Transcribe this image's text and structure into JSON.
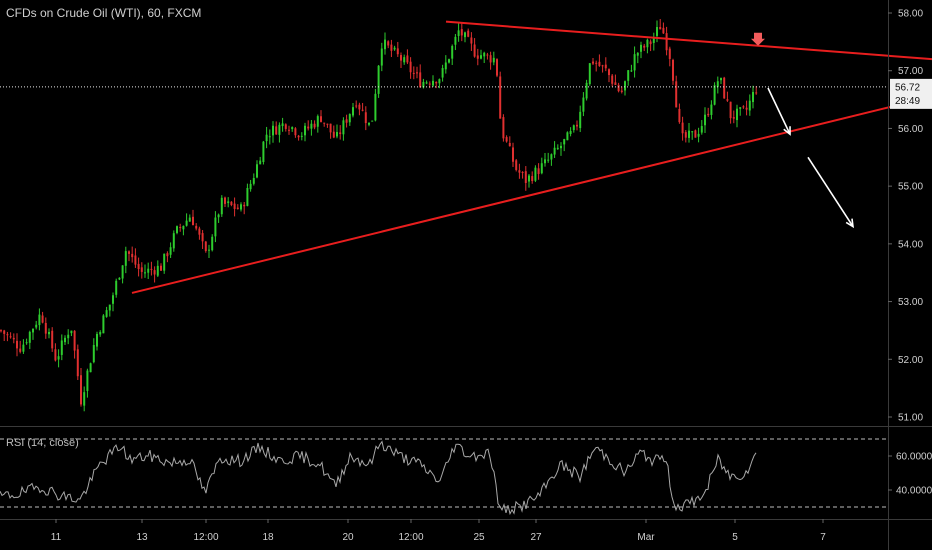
{
  "header": {
    "title": "CFDs on Crude Oil (WTI), 60, FXCM"
  },
  "rsi": {
    "title": "RSI (14, close)",
    "upper": 70,
    "lower": 30
  },
  "colors": {
    "up": "#2ecc2e",
    "down": "#e03030",
    "trend": "#e81e1e",
    "arrow": "#ffffff",
    "rsi_line": "#a8a8a8",
    "marker": "#f25c5c"
  },
  "price_scale": {
    "min": 50.8,
    "max": 58.2,
    "ticks": [
      "58.00",
      "57.00",
      "56.00",
      "55.00",
      "54.00",
      "53.00",
      "52.00",
      "51.00"
    ]
  },
  "rsi_scale": {
    "ticks": [
      "60.0000",
      "40.0000"
    ]
  },
  "current": {
    "price": "56.72",
    "countdown": "28:49"
  },
  "x_axis": {
    "labels": [
      "11",
      "13",
      "12:00",
      "18",
      "20",
      "12:00",
      "25",
      "27",
      "Mar",
      "5",
      "7"
    ]
  },
  "chart_data": {
    "type": "candlestick",
    "symbol": "CFDs on Crude Oil (WTI)",
    "timeframe": "60",
    "source": "FXCM",
    "price_path": [
      [
        0,
        52.5
      ],
      [
        20,
        52.2
      ],
      [
        40,
        52.8
      ],
      [
        55,
        52.0
      ],
      [
        70,
        52.6
      ],
      [
        80,
        51.3
      ],
      [
        95,
        52.4
      ],
      [
        110,
        53.0
      ],
      [
        125,
        53.9
      ],
      [
        140,
        53.5
      ],
      [
        160,
        53.6
      ],
      [
        175,
        54.2
      ],
      [
        190,
        54.5
      ],
      [
        205,
        53.8
      ],
      [
        220,
        54.7
      ],
      [
        240,
        54.6
      ],
      [
        255,
        55.3
      ],
      [
        265,
        55.9
      ],
      [
        285,
        56.1
      ],
      [
        300,
        55.9
      ],
      [
        320,
        56.2
      ],
      [
        335,
        55.8
      ],
      [
        355,
        56.5
      ],
      [
        370,
        56.0
      ],
      [
        380,
        57.5
      ],
      [
        400,
        57.2
      ],
      [
        420,
        56.8
      ],
      [
        440,
        56.9
      ],
      [
        458,
        57.7
      ],
      [
        475,
        57.3
      ],
      [
        495,
        57.2
      ],
      [
        500,
        56.0
      ],
      [
        515,
        55.3
      ],
      [
        525,
        55.1
      ],
      [
        545,
        55.4
      ],
      [
        560,
        55.7
      ],
      [
        575,
        56.0
      ],
      [
        590,
        57.2
      ],
      [
        605,
        57.0
      ],
      [
        620,
        56.6
      ],
      [
        635,
        57.3
      ],
      [
        650,
        57.5
      ],
      [
        660,
        57.8
      ],
      [
        670,
        57.2
      ],
      [
        680,
        55.8
      ],
      [
        695,
        55.9
      ],
      [
        705,
        56.2
      ],
      [
        718,
        56.9
      ],
      [
        730,
        56.2
      ],
      [
        745,
        56.3
      ],
      [
        755,
        56.7
      ]
    ],
    "rsi_path": [
      [
        0,
        36
      ],
      [
        20,
        38
      ],
      [
        40,
        42
      ],
      [
        60,
        37
      ],
      [
        80,
        34
      ],
      [
        100,
        55
      ],
      [
        120,
        66
      ],
      [
        130,
        58
      ],
      [
        150,
        60
      ],
      [
        170,
        56
      ],
      [
        190,
        58
      ],
      [
        205,
        38
      ],
      [
        220,
        59
      ],
      [
        240,
        57
      ],
      [
        260,
        65
      ],
      [
        280,
        57
      ],
      [
        300,
        60
      ],
      [
        320,
        55
      ],
      [
        335,
        42
      ],
      [
        350,
        60
      ],
      [
        370,
        55
      ],
      [
        380,
        68
      ],
      [
        400,
        60
      ],
      [
        420,
        55
      ],
      [
        440,
        45
      ],
      [
        455,
        67
      ],
      [
        470,
        60
      ],
      [
        490,
        62
      ],
      [
        500,
        28
      ],
      [
        520,
        30
      ],
      [
        540,
        37
      ],
      [
        560,
        55
      ],
      [
        580,
        48
      ],
      [
        595,
        65
      ],
      [
        610,
        58
      ],
      [
        625,
        50
      ],
      [
        640,
        62
      ],
      [
        655,
        57
      ],
      [
        665,
        60
      ],
      [
        675,
        30
      ],
      [
        690,
        32
      ],
      [
        705,
        38
      ],
      [
        718,
        58
      ],
      [
        730,
        48
      ],
      [
        745,
        50
      ],
      [
        755,
        60
      ]
    ],
    "trendlines": [
      {
        "from": [
          446,
          57.85
        ],
        "to": [
          932,
          57.2
        ]
      },
      {
        "from": [
          132,
          53.15
        ],
        "to": [
          932,
          56.55
        ]
      }
    ],
    "projection_arrows": [
      {
        "from": [
          768,
          56.7
        ],
        "to": [
          790,
          55.9
        ]
      },
      {
        "from": [
          808,
          55.5
        ],
        "to": [
          853,
          54.3
        ]
      }
    ],
    "down_marker": {
      "x": 758,
      "price": 57.45
    },
    "grid": false
  }
}
